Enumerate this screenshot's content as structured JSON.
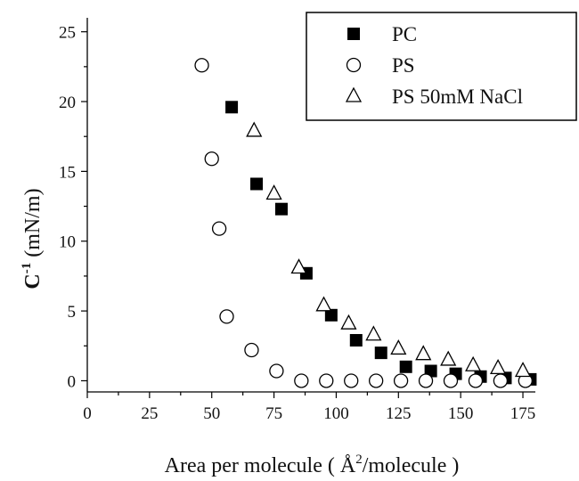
{
  "chart_data": {
    "type": "scatter",
    "title": "",
    "xlabel": {
      "main": "Area per molecule (",
      "unit_symbol": "Å",
      "sup": "2",
      "rest": "/molecule )"
    },
    "ylabel": {
      "main": "C",
      "sup": "-1",
      "rest": " (mN/m)"
    },
    "xlim": [
      0,
      180
    ],
    "ylim": [
      -0.8,
      26
    ],
    "xticks": [
      0,
      25,
      50,
      75,
      100,
      125,
      150,
      175
    ],
    "yticks": [
      0,
      5,
      10,
      15,
      20,
      25
    ],
    "grid": false,
    "legend": {
      "position": "top-right"
    },
    "series": [
      {
        "name": "PC",
        "marker": "filled-square",
        "color": "#000000",
        "x": [
          58,
          68,
          78,
          88,
          98,
          108,
          118,
          128,
          138,
          148,
          158,
          168,
          178
        ],
        "y": [
          19.6,
          14.1,
          12.3,
          7.7,
          4.7,
          2.9,
          2.0,
          1.0,
          0.7,
          0.5,
          0.3,
          0.2,
          0.1
        ]
      },
      {
        "name": "PS",
        "marker": "open-circle",
        "color": "#000000",
        "x": [
          46,
          50,
          53,
          56,
          66,
          76,
          86,
          96,
          106,
          116,
          126,
          136,
          146,
          156,
          166,
          176
        ],
        "y": [
          22.6,
          15.9,
          10.9,
          4.6,
          2.2,
          0.7,
          0.0,
          0.0,
          0.0,
          0.0,
          0.0,
          0.0,
          0.0,
          0.0,
          0.0,
          0.0
        ]
      },
      {
        "name": "PS 50mM NaCl",
        "marker": "open-triangle",
        "color": "#000000",
        "x": [
          67,
          75,
          85,
          95,
          105,
          115,
          125,
          135,
          145,
          155,
          165,
          175
        ],
        "y": [
          17.9,
          13.4,
          8.1,
          5.4,
          4.1,
          3.3,
          2.3,
          1.9,
          1.5,
          1.1,
          0.9,
          0.7
        ]
      }
    ]
  }
}
